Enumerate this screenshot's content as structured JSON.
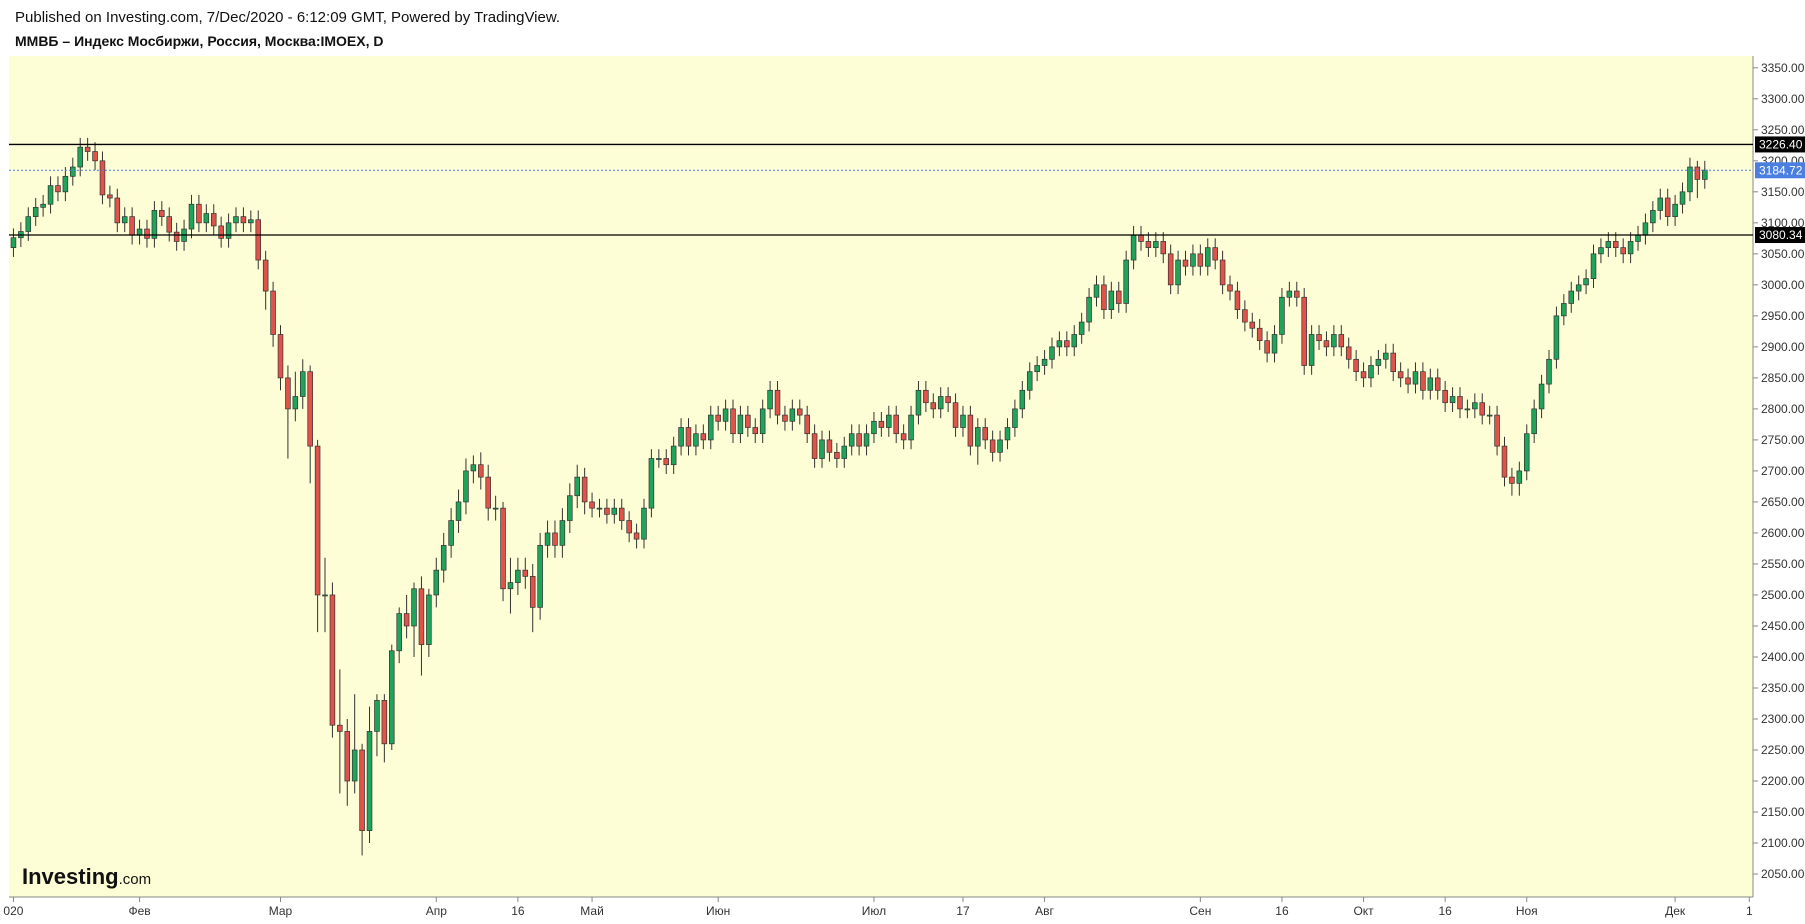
{
  "header": {
    "published": "Published on Investing.com, 7/Dec/2020 - 6:12:09 GMT, Powered by TradingView.",
    "symbol": "ММВБ – Индекс Мосбиржи, Россия, Москва:IMOEX, D"
  },
  "logo": {
    "brand": "Investing",
    "suffix": ".com"
  },
  "chart_data": {
    "type": "candlestick",
    "up_color": "#1fa55b",
    "down_color": "#e0534a",
    "background": "#fdfdd6",
    "ylim": [
      2013,
      3369
    ],
    "xlim": [
      -0.6,
      234.5
    ],
    "yticks": [
      {
        "value": 2050,
        "label": "2050.00"
      },
      {
        "value": 2100,
        "label": "2100.00"
      },
      {
        "value": 2150,
        "label": "2150.00"
      },
      {
        "value": 2200,
        "label": "2200.00"
      },
      {
        "value": 2250,
        "label": "2250.00"
      },
      {
        "value": 2300,
        "label": "2300.00"
      },
      {
        "value": 2350,
        "label": "2350.00"
      },
      {
        "value": 2400,
        "label": "2400.00"
      },
      {
        "value": 2450,
        "label": "2450.00"
      },
      {
        "value": 2500,
        "label": "2500.00"
      },
      {
        "value": 2550,
        "label": "2550.00"
      },
      {
        "value": 2600,
        "label": "2600.00"
      },
      {
        "value": 2650,
        "label": "2650.00"
      },
      {
        "value": 2700,
        "label": "2700.00"
      },
      {
        "value": 2750,
        "label": "2750.00"
      },
      {
        "value": 2800,
        "label": "2800.00"
      },
      {
        "value": 2850,
        "label": "2850.00"
      },
      {
        "value": 2900,
        "label": "2900.00"
      },
      {
        "value": 2950,
        "label": "2950.00"
      },
      {
        "value": 3000,
        "label": "3000.00"
      },
      {
        "value": 3050,
        "label": "3050.00"
      },
      {
        "value": 3100,
        "label": "3100.00"
      },
      {
        "value": 3150,
        "label": "3150.00"
      },
      {
        "value": 3200,
        "label": "3200.00"
      },
      {
        "value": 3250,
        "label": "3250.00"
      },
      {
        "value": 3300,
        "label": "3300.00"
      },
      {
        "value": 3350,
        "label": "3350.00"
      }
    ],
    "xticks": [
      {
        "value": 0,
        "label": "020"
      },
      {
        "value": 17,
        "label": "Фев"
      },
      {
        "value": 36,
        "label": "Мар"
      },
      {
        "value": 57,
        "label": "Апр"
      },
      {
        "value": 68,
        "label": "16"
      },
      {
        "value": 78,
        "label": "Май"
      },
      {
        "value": 95,
        "label": "Июн"
      },
      {
        "value": 116,
        "label": "Июл"
      },
      {
        "value": 128,
        "label": "17"
      },
      {
        "value": 139,
        "label": "Авг"
      },
      {
        "value": 160,
        "label": "Сен"
      },
      {
        "value": 171,
        "label": "16"
      },
      {
        "value": 182,
        "label": "Окт"
      },
      {
        "value": 193,
        "label": "16"
      },
      {
        "value": 204,
        "label": "Ноя"
      },
      {
        "value": 224,
        "label": "Дек"
      },
      {
        "value": 234,
        "label": "1"
      }
    ],
    "hlines": [
      {
        "value": 3226.4,
        "label": "3226.40"
      },
      {
        "value": 3080.34,
        "label": "3080.34"
      }
    ],
    "last_price": {
      "value": 3184.72,
      "label": "3184.72",
      "color": "#4a7fe0"
    },
    "open": [
      3060,
      3076,
      3086,
      3110,
      3125,
      3130,
      3160,
      3150,
      3175,
      3190,
      3222,
      3215,
      3200,
      3145,
      3140,
      3100,
      3110,
      3080,
      3090,
      3075,
      3120,
      3110,
      3085,
      3070,
      3090,
      3130,
      3100,
      3115,
      3095,
      3075,
      3100,
      3110,
      3100,
      3105,
      3040,
      2990,
      2920,
      2850,
      2800,
      2820,
      2860,
      2740,
      2500,
      2500,
      2290,
      2280,
      2200,
      2250,
      2120,
      2280,
      2330,
      2260,
      2410,
      2470,
      2450,
      2510,
      2420,
      2500,
      2540,
      2580,
      2620,
      2650,
      2700,
      2710,
      2690,
      2640,
      2640,
      2510,
      2520,
      2540,
      2530,
      2480,
      2580,
      2600,
      2580,
      2620,
      2660,
      2690,
      2650,
      2640,
      2640,
      2630,
      2640,
      2620,
      2600,
      2590,
      2640,
      2720,
      2720,
      2710,
      2740,
      2770,
      2740,
      2760,
      2750,
      2790,
      2780,
      2800,
      2760,
      2790,
      2770,
      2760,
      2800,
      2830,
      2790,
      2780,
      2800,
      2790,
      2760,
      2720,
      2750,
      2730,
      2720,
      2740,
      2760,
      2740,
      2760,
      2780,
      2770,
      2790,
      2760,
      2750,
      2790,
      2830,
      2810,
      2800,
      2820,
      2810,
      2770,
      2790,
      2740,
      2770,
      2750,
      2730,
      2750,
      2770,
      2800,
      2830,
      2860,
      2870,
      2880,
      2900,
      2910,
      2900,
      2920,
      2940,
      2980,
      3000,
      2960,
      2990,
      2970,
      3040,
      3080,
      3070,
      3060,
      3070,
      3050,
      3000,
      3040,
      3030,
      3050,
      3030,
      3060,
      3040,
      3000,
      2990,
      2960,
      2940,
      2930,
      2910,
      2890,
      2920,
      2980,
      2990,
      2980,
      2870,
      2920,
      2910,
      2900,
      2920,
      2900,
      2880,
      2860,
      2850,
      2870,
      2880,
      2890,
      2860,
      2850,
      2840,
      2860,
      2830,
      2850,
      2830,
      2810,
      2820,
      2800,
      2800,
      2810,
      2790,
      2790,
      2740,
      2690,
      2680,
      2700,
      2760,
      2800,
      2840,
      2880,
      2950,
      2970,
      2990,
      3000,
      3010,
      3050,
      3060,
      3070,
      3060,
      3050,
      3070,
      3080,
      3100,
      3120,
      3140,
      3110,
      3130,
      3150,
      3190,
      3170
    ],
    "high": [
      3091,
      3101,
      3125,
      3140,
      3145,
      3175,
      3175,
      3190,
      3205,
      3237,
      3237,
      3230,
      3215,
      3160,
      3155,
      3125,
      3125,
      3105,
      3105,
      3135,
      3135,
      3125,
      3100,
      3105,
      3145,
      3145,
      3130,
      3130,
      3110,
      3115,
      3125,
      3125,
      3120,
      3120,
      3055,
      3005,
      2935,
      2870,
      2860,
      2880,
      2870,
      2750,
      2560,
      2520,
      2380,
      2300,
      2340,
      2260,
      2320,
      2340,
      2340,
      2420,
      2480,
      2500,
      2520,
      2530,
      2510,
      2560,
      2600,
      2640,
      2670,
      2720,
      2725,
      2730,
      2710,
      2660,
      2650,
      2560,
      2560,
      2560,
      2550,
      2600,
      2620,
      2620,
      2640,
      2680,
      2710,
      2705,
      2665,
      2655,
      2655,
      2655,
      2655,
      2635,
      2615,
      2655,
      2735,
      2735,
      2735,
      2755,
      2785,
      2785,
      2775,
      2775,
      2805,
      2805,
      2815,
      2815,
      2805,
      2805,
      2785,
      2815,
      2845,
      2845,
      2805,
      2815,
      2815,
      2805,
      2775,
      2765,
      2765,
      2745,
      2755,
      2775,
      2775,
      2775,
      2795,
      2795,
      2805,
      2805,
      2775,
      2805,
      2845,
      2845,
      2825,
      2835,
      2835,
      2825,
      2805,
      2805,
      2785,
      2785,
      2765,
      2765,
      2785,
      2815,
      2845,
      2875,
      2885,
      2895,
      2915,
      2925,
      2925,
      2935,
      2955,
      2995,
      3015,
      3015,
      3005,
      3005,
      3055,
      3095,
      3095,
      3085,
      3085,
      3085,
      3065,
      3055,
      3055,
      3065,
      3065,
      3075,
      3075,
      3055,
      3015,
      3005,
      2975,
      2955,
      2945,
      2925,
      2935,
      2995,
      3005,
      3005,
      2995,
      2935,
      2935,
      2925,
      2935,
      2935,
      2915,
      2895,
      2875,
      2885,
      2895,
      2905,
      2905,
      2875,
      2865,
      2875,
      2875,
      2865,
      2865,
      2845,
      2835,
      2835,
      2815,
      2825,
      2825,
      2805,
      2805,
      2755,
      2705,
      2715,
      2775,
      2815,
      2855,
      2895,
      2965,
      2985,
      3005,
      3015,
      3025,
      3065,
      3075,
      3085,
      3085,
      3075,
      3085,
      3095,
      3115,
      3135,
      3155,
      3155,
      3145,
      3165,
      3205,
      3200,
      3200
    ],
    "low": [
      3045,
      3061,
      3071,
      3095,
      3110,
      3115,
      3135,
      3135,
      3160,
      3175,
      3200,
      3185,
      3130,
      3125,
      3085,
      3085,
      3065,
      3065,
      3060,
      3060,
      3095,
      3070,
      3055,
      3055,
      3075,
      3085,
      3085,
      3080,
      3060,
      3060,
      3085,
      3085,
      3085,
      3025,
      2960,
      2900,
      2830,
      2720,
      2780,
      2800,
      2680,
      2440,
      2440,
      2270,
      2180,
      2160,
      2180,
      2080,
      2100,
      2240,
      2230,
      2250,
      2390,
      2430,
      2400,
      2370,
      2400,
      2480,
      2520,
      2560,
      2600,
      2630,
      2680,
      2670,
      2620,
      2620,
      2490,
      2470,
      2500,
      2510,
      2440,
      2460,
      2560,
      2560,
      2560,
      2600,
      2640,
      2630,
      2625,
      2625,
      2615,
      2615,
      2605,
      2585,
      2575,
      2575,
      2625,
      2705,
      2695,
      2695,
      2725,
      2725,
      2725,
      2735,
      2735,
      2765,
      2765,
      2745,
      2745,
      2755,
      2745,
      2745,
      2785,
      2775,
      2765,
      2765,
      2775,
      2745,
      2705,
      2705,
      2715,
      2705,
      2705,
      2725,
      2725,
      2725,
      2745,
      2755,
      2755,
      2745,
      2735,
      2735,
      2775,
      2795,
      2785,
      2785,
      2795,
      2755,
      2755,
      2725,
      2710,
      2735,
      2715,
      2715,
      2735,
      2755,
      2785,
      2815,
      2845,
      2855,
      2865,
      2885,
      2885,
      2885,
      2905,
      2925,
      2965,
      2945,
      2945,
      2955,
      2955,
      3025,
      3055,
      3045,
      3045,
      3035,
      2985,
      2985,
      3015,
      3015,
      3015,
      3015,
      3025,
      2985,
      2975,
      2945,
      2925,
      2915,
      2895,
      2875,
      2875,
      2905,
      2965,
      2965,
      2855,
      2855,
      2895,
      2885,
      2885,
      2885,
      2865,
      2845,
      2835,
      2835,
      2855,
      2865,
      2845,
      2835,
      2825,
      2825,
      2815,
      2815,
      2815,
      2795,
      2795,
      2785,
      2785,
      2785,
      2775,
      2775,
      2725,
      2675,
      2660,
      2660,
      2685,
      2745,
      2785,
      2825,
      2865,
      2935,
      2955,
      2975,
      2985,
      2995,
      3035,
      3045,
      3045,
      3035,
      3035,
      3055,
      3065,
      3085,
      3105,
      3095,
      3095,
      3115,
      3135,
      3140,
      3155
    ],
    "close": [
      3076,
      3086,
      3110,
      3125,
      3130,
      3160,
      3150,
      3175,
      3190,
      3222,
      3215,
      3200,
      3145,
      3140,
      3100,
      3110,
      3080,
      3090,
      3075,
      3120,
      3110,
      3085,
      3070,
      3090,
      3130,
      3100,
      3115,
      3095,
      3075,
      3100,
      3110,
      3100,
      3105,
      3040,
      2990,
      2920,
      2850,
      2800,
      2820,
      2860,
      2740,
      2500,
      2500,
      2290,
      2280,
      2200,
      2250,
      2120,
      2280,
      2330,
      2260,
      2410,
      2470,
      2450,
      2510,
      2420,
      2500,
      2540,
      2580,
      2620,
      2650,
      2700,
      2710,
      2690,
      2640,
      2640,
      2510,
      2520,
      2540,
      2530,
      2480,
      2580,
      2600,
      2580,
      2620,
      2660,
      2690,
      2650,
      2640,
      2640,
      2630,
      2640,
      2620,
      2600,
      2590,
      2640,
      2720,
      2720,
      2710,
      2740,
      2770,
      2740,
      2760,
      2750,
      2790,
      2780,
      2800,
      2760,
      2790,
      2770,
      2760,
      2800,
      2830,
      2790,
      2780,
      2800,
      2790,
      2760,
      2720,
      2750,
      2730,
      2720,
      2740,
      2760,
      2740,
      2760,
      2780,
      2770,
      2790,
      2760,
      2750,
      2790,
      2830,
      2810,
      2800,
      2820,
      2810,
      2770,
      2790,
      2740,
      2770,
      2750,
      2730,
      2750,
      2770,
      2800,
      2830,
      2860,
      2870,
      2880,
      2900,
      2910,
      2900,
      2920,
      2940,
      2980,
      3000,
      2960,
      2990,
      2970,
      3040,
      3080,
      3070,
      3060,
      3070,
      3050,
      3000,
      3040,
      3030,
      3050,
      3030,
      3060,
      3040,
      3000,
      2990,
      2960,
      2940,
      2930,
      2910,
      2890,
      2920,
      2980,
      2990,
      2980,
      2870,
      2920,
      2910,
      2900,
      2920,
      2900,
      2880,
      2860,
      2850,
      2870,
      2880,
      2890,
      2860,
      2850,
      2840,
      2860,
      2830,
      2850,
      2830,
      2810,
      2820,
      2800,
      2800,
      2810,
      2790,
      2790,
      2740,
      2690,
      2680,
      2700,
      2760,
      2800,
      2840,
      2880,
      2950,
      2970,
      2990,
      3000,
      3010,
      3050,
      3060,
      3070,
      3060,
      3050,
      3070,
      3080,
      3100,
      3120,
      3140,
      3110,
      3130,
      3150,
      3190,
      3170,
      3185
    ]
  }
}
